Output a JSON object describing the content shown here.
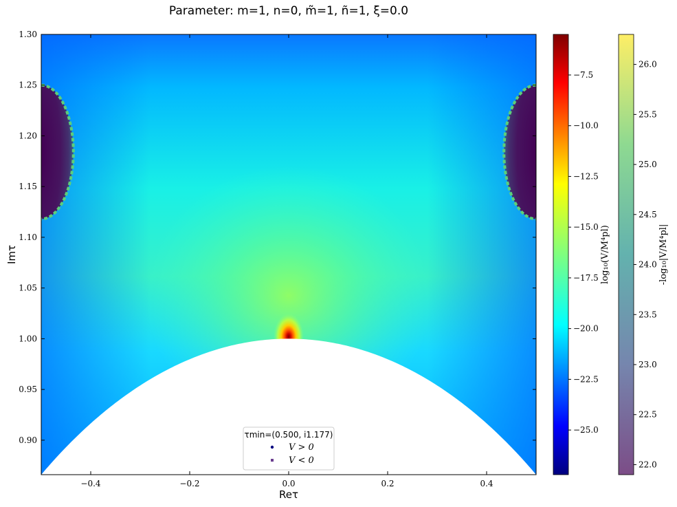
{
  "chart_data": {
    "type": "heatmap",
    "title": "Parameter: m=1, n=0, m̃=1, ñ=1, ξ=0.0",
    "xlabel": "Reτ",
    "ylabel": "Imτ",
    "xlim": [
      -0.5,
      0.5
    ],
    "ylim": [
      0.866,
      1.3
    ],
    "xticks": [
      {
        "value": -0.4,
        "label": "−0.4"
      },
      {
        "value": -0.2,
        "label": "−0.2"
      },
      {
        "value": 0.0,
        "label": "0.0"
      },
      {
        "value": 0.2,
        "label": "0.2"
      },
      {
        "value": 0.4,
        "label": "0.4"
      }
    ],
    "yticks": [
      {
        "value": 0.9,
        "label": "0.90"
      },
      {
        "value": 0.95,
        "label": "0.95"
      },
      {
        "value": 1.0,
        "label": "1.00"
      },
      {
        "value": 1.05,
        "label": "1.05"
      },
      {
        "value": 1.1,
        "label": "1.10"
      },
      {
        "value": 1.15,
        "label": "1.15"
      },
      {
        "value": 1.2,
        "label": "1.20"
      },
      {
        "value": 1.25,
        "label": "1.25"
      },
      {
        "value": 1.3,
        "label": "1.30"
      }
    ],
    "fundamental_domain_boundary": "|τ| = 1",
    "negative_regions": [
      {
        "center": [
          -0.5,
          1.185
        ],
        "re_halfwidth": 0.065,
        "im_range": [
          1.118,
          1.25
        ]
      },
      {
        "center": [
          0.5,
          1.185
        ],
        "re_halfwidth": 0.065,
        "im_range": [
          1.118,
          1.25
        ]
      }
    ],
    "peak": {
      "re": 0.0,
      "im": 1.002
    },
    "colorbars": [
      {
        "label": "log₁₀(V/M⁴pl)",
        "colormap": "jet",
        "range": [
          -27.2,
          -5.5
        ],
        "ticks": [
          {
            "value": -7.5,
            "label": "−7.5"
          },
          {
            "value": -10.0,
            "label": "−10.0"
          },
          {
            "value": -12.5,
            "label": "−12.5"
          },
          {
            "value": -15.0,
            "label": "−15.0"
          },
          {
            "value": -17.5,
            "label": "−17.5"
          },
          {
            "value": -20.0,
            "label": "−20.0"
          },
          {
            "value": -22.5,
            "label": "−22.5"
          },
          {
            "value": -25.0,
            "label": "−25.0"
          }
        ]
      },
      {
        "label": "-log₁₀|V/M⁴pl|",
        "colormap": "viridis",
        "alpha": 0.7,
        "range": [
          21.9,
          26.3
        ],
        "ticks": [
          {
            "value": 22.0,
            "label": "22.0"
          },
          {
            "value": 22.5,
            "label": "22.5"
          },
          {
            "value": 23.0,
            "label": "23.0"
          },
          {
            "value": 23.5,
            "label": "23.5"
          },
          {
            "value": 24.0,
            "label": "24.0"
          },
          {
            "value": 24.5,
            "label": "24.5"
          },
          {
            "value": 25.0,
            "label": "25.0"
          },
          {
            "value": 25.5,
            "label": "25.5"
          },
          {
            "value": 26.0,
            "label": "26.0"
          }
        ]
      }
    ],
    "legend": {
      "placement": "lower center",
      "title": "τmin=(0.500, i1.177)",
      "entries": [
        {
          "label": "V > 0",
          "marker": "dot",
          "color": "#00007f"
        },
        {
          "label": "V < 0",
          "marker": "square",
          "color": "#6a3d8f"
        }
      ]
    }
  }
}
